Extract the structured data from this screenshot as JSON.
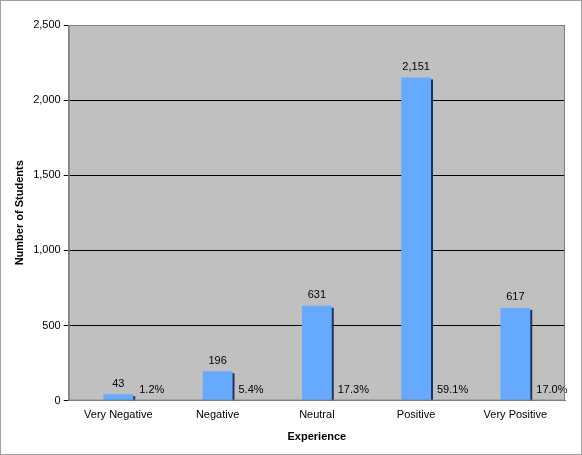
{
  "chart_data": {
    "type": "bar",
    "x_label": "Experience",
    "y_label": "Number of Students",
    "categories": [
      "Very Negative",
      "Negative",
      "Neutral",
      "Positive",
      "Very Positive"
    ],
    "values": [
      43,
      196,
      631,
      2151,
      617
    ],
    "value_labels": [
      "43",
      "196",
      "631",
      "2,151",
      "617"
    ],
    "shares": [
      {
        "value": 1.2,
        "label": "1.2%"
      },
      {
        "value": 5.4,
        "label": "5.4%"
      },
      {
        "value": 17.3,
        "label": "17.3%"
      },
      {
        "value": 59.1,
        "label": "59.1%"
      },
      {
        "value": 17.0,
        "label": "17.0%"
      }
    ],
    "color": "#66aaff",
    "ylim": [
      0,
      2500
    ],
    "yticks": [
      0,
      500,
      {
        "value": 1000,
        "label": "1,000"
      },
      {
        "value": 1500,
        "label": "1,500"
      },
      {
        "value": 2000,
        "label": "2,000"
      },
      {
        "value": 2500,
        "label": "2,500"
      }
    ],
    "grid": true,
    "data_labels": true
  }
}
